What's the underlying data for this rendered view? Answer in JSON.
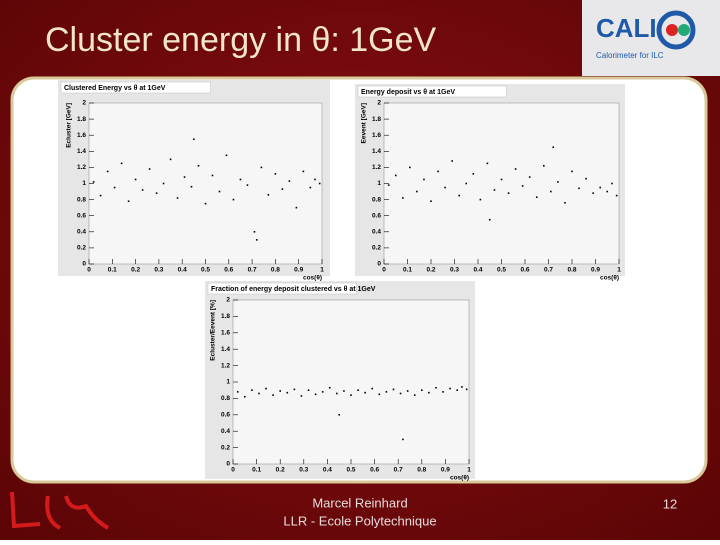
{
  "slide": {
    "title": "Cluster energy in θ: 1GeV",
    "logo_text": "CALI",
    "logo_subtitle": "Calorimeter for ILC",
    "author": "Marcel Reinhard",
    "affiliation": "LLR - Ecole Polytechnique",
    "page_number": "12"
  },
  "chart_data": [
    {
      "type": "scatter",
      "title": "Clustered Energy vs θ at 1GeV",
      "x_label": "cos(θ)",
      "y_label": "Ecluster [GeV]",
      "color": "#000000",
      "xlim": [
        0,
        1
      ],
      "xticks": [
        0,
        0.1,
        0.2,
        0.3,
        0.4,
        0.5,
        0.6,
        0.7,
        0.8,
        0.9,
        1
      ],
      "ylim": [
        0,
        2
      ],
      "yticks": [
        0,
        0.2,
        0.4,
        0.6,
        0.8,
        1,
        1.2,
        1.4,
        1.6,
        1.8,
        2
      ],
      "x": [
        0.02,
        0.05,
        0.08,
        0.11,
        0.14,
        0.17,
        0.2,
        0.23,
        0.26,
        0.29,
        0.32,
        0.35,
        0.38,
        0.41,
        0.44,
        0.47,
        0.5,
        0.53,
        0.56,
        0.59,
        0.62,
        0.65,
        0.68,
        0.71,
        0.74,
        0.77,
        0.8,
        0.83,
        0.86,
        0.89,
        0.92,
        0.95,
        0.97,
        0.99,
        0.72,
        0.45
      ],
      "y": [
        1.02,
        0.85,
        1.15,
        0.95,
        1.25,
        0.78,
        1.05,
        0.92,
        1.18,
        0.88,
        1.0,
        1.3,
        0.82,
        1.08,
        0.96,
        1.22,
        0.75,
        1.1,
        0.9,
        1.35,
        0.8,
        1.05,
        0.98,
        0.4,
        1.2,
        0.86,
        1.12,
        0.93,
        1.03,
        0.7,
        1.15,
        0.95,
        1.05,
        1.0,
        0.3,
        1.55
      ]
    },
    {
      "type": "scatter",
      "title": "Energy deposit vs θ at 1GeV",
      "x_label": "cos(θ)",
      "y_label": "Eevent [GeV]",
      "color": "#000000",
      "xlim": [
        0,
        1
      ],
      "xticks": [
        0,
        0.1,
        0.2,
        0.3,
        0.4,
        0.5,
        0.6,
        0.7,
        0.8,
        0.9,
        1
      ],
      "ylim": [
        0,
        2
      ],
      "yticks": [
        0,
        0.2,
        0.4,
        0.6,
        0.8,
        1,
        1.2,
        1.4,
        1.6,
        1.8,
        2
      ],
      "x": [
        0.02,
        0.05,
        0.08,
        0.11,
        0.14,
        0.17,
        0.2,
        0.23,
        0.26,
        0.29,
        0.32,
        0.35,
        0.38,
        0.41,
        0.44,
        0.47,
        0.5,
        0.53,
        0.56,
        0.59,
        0.62,
        0.65,
        0.68,
        0.71,
        0.74,
        0.77,
        0.8,
        0.83,
        0.86,
        0.89,
        0.92,
        0.95,
        0.97,
        0.99,
        0.72,
        0.45
      ],
      "y": [
        0.98,
        1.1,
        0.82,
        1.2,
        0.9,
        1.05,
        0.78,
        1.15,
        0.95,
        1.28,
        0.85,
        1.0,
        1.12,
        0.8,
        1.25,
        0.92,
        1.05,
        0.88,
        1.18,
        0.97,
        1.08,
        0.83,
        1.22,
        0.9,
        1.02,
        0.76,
        1.15,
        0.94,
        1.06,
        0.88,
        0.95,
        0.9,
        1.0,
        0.85,
        1.45,
        0.55
      ]
    },
    {
      "type": "scatter",
      "title": "Fraction of energy deposit clustered vs θ at 1GeV",
      "x_label": "cos(θ)",
      "y_label": "Ecluster/Eevent [%]",
      "color": "#000000",
      "xlim": [
        0,
        1
      ],
      "xticks": [
        0,
        0.1,
        0.2,
        0.3,
        0.4,
        0.5,
        0.6,
        0.7,
        0.8,
        0.9,
        1
      ],
      "ylim": [
        0,
        2
      ],
      "yticks": [
        0,
        0.2,
        0.4,
        0.6,
        0.8,
        1,
        1.2,
        1.4,
        1.6,
        1.8,
        2
      ],
      "x": [
        0.02,
        0.05,
        0.08,
        0.11,
        0.14,
        0.17,
        0.2,
        0.23,
        0.26,
        0.29,
        0.32,
        0.35,
        0.38,
        0.41,
        0.44,
        0.47,
        0.5,
        0.53,
        0.56,
        0.59,
        0.62,
        0.65,
        0.68,
        0.71,
        0.74,
        0.77,
        0.8,
        0.83,
        0.86,
        0.89,
        0.92,
        0.95,
        0.97,
        0.99,
        0.72,
        0.45
      ],
      "y": [
        0.88,
        0.82,
        0.9,
        0.86,
        0.92,
        0.84,
        0.89,
        0.87,
        0.91,
        0.83,
        0.9,
        0.85,
        0.88,
        0.93,
        0.86,
        0.89,
        0.84,
        0.9,
        0.87,
        0.92,
        0.85,
        0.88,
        0.91,
        0.86,
        0.89,
        0.84,
        0.9,
        0.87,
        0.93,
        0.88,
        0.92,
        0.9,
        0.94,
        0.91,
        0.3,
        0.6
      ]
    }
  ]
}
